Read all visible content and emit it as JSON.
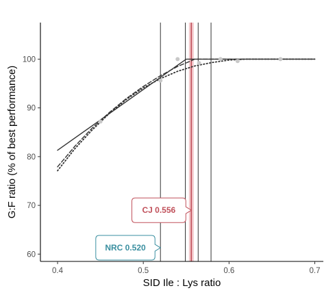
{
  "chart_data": {
    "type": "line",
    "xlabel": "SID Ile : Lys ratio",
    "ylabel": "G:F ratio (% of best performance)",
    "xlim": [
      0.38,
      0.71
    ],
    "ylim": [
      58.5,
      107.5
    ],
    "x_ticks": [
      0.4,
      0.5,
      0.6,
      0.7
    ],
    "y_ticks": [
      60,
      70,
      80,
      90,
      100
    ],
    "x_tick_labels": [
      "0.4",
      "0.5",
      "0.6",
      "0.7"
    ],
    "y_tick_labels": [
      "60",
      "70",
      "80",
      "90",
      "100"
    ],
    "grid": false,
    "points": {
      "color": "#c8c8c8",
      "x": [
        0.45,
        0.52,
        0.54,
        0.565,
        0.59,
        0.61,
        0.66
      ],
      "y": [
        87.2,
        95.6,
        100.0,
        99.2,
        100.0,
        99.6,
        100.0
      ]
    },
    "series": [
      {
        "style": "solid",
        "color": "#333333",
        "x": [
          0.4,
          0.55,
          0.7
        ],
        "y": [
          81.3,
          100.0,
          100.0
        ]
      },
      {
        "style": "dashed",
        "color": "#333333",
        "x": [
          0.4,
          0.42,
          0.44,
          0.46,
          0.48,
          0.5,
          0.52,
          0.54,
          0.555,
          0.56,
          0.58,
          0.6,
          0.62,
          0.7
        ],
        "y": [
          77.9,
          82.1,
          85.8,
          89.0,
          91.9,
          94.4,
          96.6,
          98.5,
          99.6,
          100.0,
          100.0,
          100.0,
          100.0,
          100.0
        ]
      },
      {
        "style": "dotted",
        "color": "#333333",
        "x": [
          0.4,
          0.42,
          0.44,
          0.46,
          0.48,
          0.5,
          0.52,
          0.54,
          0.56,
          0.58,
          0.6,
          0.62,
          0.7
        ],
        "y": [
          77.1,
          81.6,
          85.4,
          88.8,
          91.7,
          94.1,
          96.0,
          97.5,
          98.6,
          99.3,
          99.8,
          100.0,
          100.0
        ]
      }
    ],
    "vlines": [
      {
        "x": 0.52,
        "color": "#333333"
      },
      {
        "x": 0.549,
        "color": "#333333"
      },
      {
        "x": 0.564,
        "color": "#333333"
      },
      {
        "x": 0.579,
        "color": "#333333"
      },
      {
        "x": 0.556,
        "color": "#c0505a",
        "emphasis": true
      }
    ],
    "annotations": [
      {
        "text": "CJ 0.556",
        "color": "#c0505a",
        "x": 0.556,
        "y": 69.0
      },
      {
        "text": "NRC 0.520",
        "color": "#3a8fa0",
        "x": 0.52,
        "y": 61.3
      }
    ]
  }
}
